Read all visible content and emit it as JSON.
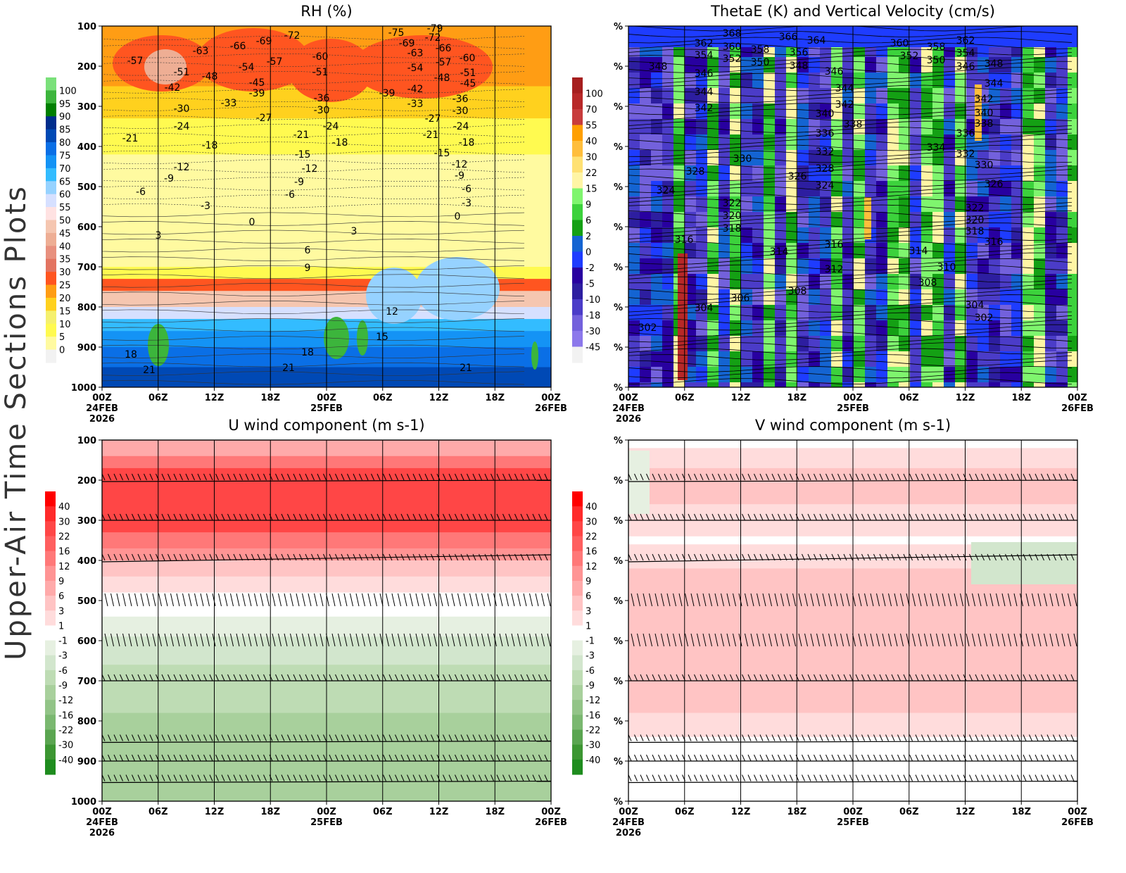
{
  "side_title": "Upper-Air Time Sections Plots",
  "x_ticks": [
    {
      "main": "00Z",
      "sub": "24FEB",
      "sub2": "2026"
    },
    {
      "main": "06Z"
    },
    {
      "main": "12Z"
    },
    {
      "main": "18Z"
    },
    {
      "main": "00Z",
      "sub": "25FEB"
    },
    {
      "main": "06Z"
    },
    {
      "main": "12Z"
    },
    {
      "main": "18Z"
    },
    {
      "main": "00Z",
      "sub": "26FEB"
    }
  ],
  "chart_data": [
    {
      "type": "heatmap",
      "title": "RH (%)",
      "y_ticks": [
        "100",
        "200",
        "300",
        "400",
        "500",
        "600",
        "700",
        "800",
        "900",
        "1000"
      ],
      "ylim": [
        1000,
        100
      ],
      "colorbar": {
        "levels": [
          "100",
          "95",
          "90",
          "85",
          "80",
          "75",
          "70",
          "65",
          "60",
          "55",
          "50",
          "45",
          "40",
          "35",
          "30",
          "25",
          "20",
          "15",
          "10",
          "5",
          "0"
        ],
        "colors": [
          "#7ae07a",
          "#3cb53c",
          "#007f00",
          "#002d8c",
          "#0049b5",
          "#0a6fe6",
          "#1493f5",
          "#33bcff",
          "#96d2ff",
          "#d6e0ff",
          "#ffe2e2",
          "#f5c6b0",
          "#eeae94",
          "#e8907e",
          "#e37461",
          "#ff5520",
          "#ff9d14",
          "#ffd11e",
          "#f5f06e",
          "#fffa50",
          "#fffaa0",
          "#f2f2f2"
        ]
      },
      "contour_labels": [
        "-57",
        "-63",
        "-66",
        "-69",
        "-72",
        "-51",
        "-48",
        "-54",
        "-57",
        "-60",
        "-51",
        "-42",
        "-45",
        "-39",
        "-33",
        "-30",
        "-36",
        "-30",
        "-27",
        "-24",
        "-21",
        "-18",
        "-21",
        "-24",
        "-18",
        "-15",
        "-12",
        "-9",
        "-12",
        "-9",
        "-6",
        "-6",
        "-3",
        "0",
        "3",
        "3",
        "6",
        "9",
        "12",
        "15",
        "18",
        "21",
        "18",
        "21",
        "21",
        "-75",
        "-79",
        "-72",
        "-69",
        "-66",
        "-63",
        "-60",
        "-57",
        "-54",
        "-51",
        "-45",
        "-48",
        "-42",
        "-39",
        "-33",
        "-36",
        "-30",
        "-27",
        "-24",
        "-21",
        "-18",
        "-15",
        "-12",
        "-9",
        "-6",
        "-3",
        "0"
      ]
    },
    {
      "type": "heatmap",
      "title": "ThetaE (K) and Vertical Velocity (cm/s)",
      "y_ticks": [
        "%",
        "%",
        "%",
        "%",
        "%",
        "%",
        "%",
        "%",
        "%",
        "%"
      ],
      "colorbar": {
        "levels": [
          "100",
          "70",
          "55",
          "40",
          "30",
          "22",
          "15",
          "9",
          "6",
          "2",
          "0",
          "-2",
          "-5",
          "-10",
          "-18",
          "-30",
          "-45"
        ],
        "colors": [
          "#a61e1e",
          "#b82828",
          "#c83c3c",
          "#ff9f00",
          "#ffbe3c",
          "#ffe173",
          "#fff5a5",
          "#7ff56e",
          "#3cd23c",
          "#14a014",
          "#1464d2",
          "#1e3cff",
          "#2800a0",
          "#2d1ea0",
          "#4b3cc8",
          "#7361dc",
          "#8c78eb",
          "#f2f2f2"
        ]
      },
      "contour_labels": [
        "368",
        "366",
        "364",
        "362",
        "360",
        "358",
        "356",
        "354",
        "352",
        "350",
        "348",
        "348",
        "346",
        "346",
        "344",
        "344",
        "342",
        "342",
        "340",
        "338",
        "336",
        "332",
        "330",
        "328",
        "328",
        "326",
        "324",
        "324",
        "322",
        "320",
        "318",
        "316",
        "316",
        "314",
        "312",
        "308",
        "306",
        "304",
        "302",
        "362",
        "360",
        "358",
        "354",
        "352",
        "350",
        "348",
        "346",
        "344",
        "342",
        "340",
        "338",
        "336",
        "334",
        "332",
        "330",
        "326",
        "322",
        "320",
        "318",
        "316",
        "314",
        "310",
        "308",
        "304",
        "302"
      ]
    },
    {
      "type": "heatmap",
      "title": "U wind component (m s-1)",
      "y_ticks": [
        "100",
        "200",
        "300",
        "400",
        "500",
        "600",
        "700",
        "800",
        "900",
        "1000"
      ],
      "ylim": [
        1000,
        100
      ],
      "colorbar": {
        "levels": [
          "40",
          "30",
          "22",
          "16",
          "12",
          "9",
          "6",
          "3",
          "1",
          "-1",
          "-3",
          "-6",
          "-9",
          "-12",
          "-16",
          "-22",
          "-30",
          "-40"
        ],
        "colors": [
          "#ff0000",
          "#ff2a2a",
          "#ff4646",
          "#ff5f5f",
          "#ff7878",
          "#ff9494",
          "#ffaaaa",
          "#ffc4c4",
          "#ffdcdc",
          "#ffffff",
          "#e6f0e1",
          "#d2e6cd",
          "#bedcb4",
          "#a8d09c",
          "#92c487",
          "#7ab870",
          "#5aa550",
          "#3c9632",
          "#1e8c1e"
        ]
      }
    },
    {
      "type": "heatmap",
      "title": "V wind component (m s-1)",
      "y_ticks": [
        "%",
        "%",
        "%",
        "%",
        "%",
        "%",
        "%",
        "%",
        "%",
        "%"
      ],
      "colorbar": {
        "levels": [
          "40",
          "30",
          "22",
          "16",
          "12",
          "9",
          "6",
          "3",
          "1",
          "-1",
          "-3",
          "-6",
          "-9",
          "-12",
          "-16",
          "-22",
          "-30",
          "-40"
        ],
        "colors": [
          "#ff0000",
          "#ff2a2a",
          "#ff4646",
          "#ff5f5f",
          "#ff7878",
          "#ff9494",
          "#ffaaaa",
          "#ffc4c4",
          "#ffdcdc",
          "#ffffff",
          "#e6f0e1",
          "#d2e6cd",
          "#bedcb4",
          "#a8d09c",
          "#92c487",
          "#7ab870",
          "#5aa550",
          "#3c9632",
          "#1e8c1e"
        ]
      }
    }
  ]
}
